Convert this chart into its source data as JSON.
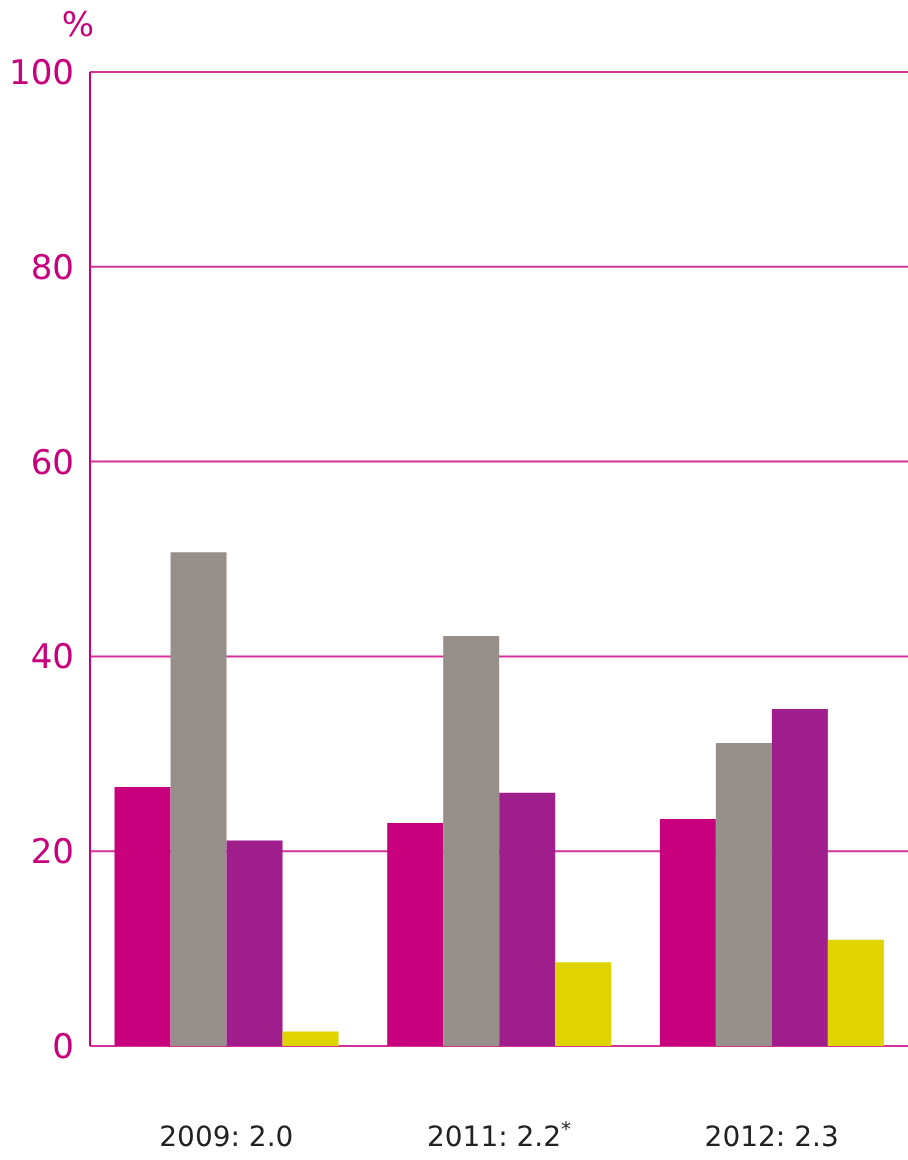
{
  "chart_data": {
    "type": "bar",
    "ylabel": "%",
    "categories": [
      "2009: 2.0",
      "2011: 2.2$^{*}$",
      "2012: 2.3"
    ],
    "series": [
      {
        "color": "#c8007d",
        "values": [
          26.6,
          22.9,
          23.3
        ]
      },
      {
        "color": "#968f8a",
        "values": [
          50.7,
          42.1,
          31.1
        ]
      },
      {
        "color": "#a01e8c",
        "values": [
          21.1,
          26.0,
          34.6
        ]
      },
      {
        "color": "#e0d400",
        "values": [
          1.5,
          8.6,
          10.9
        ]
      }
    ],
    "ylim": [
      0,
      100
    ],
    "yticks": [
      0,
      20,
      40,
      60,
      80,
      100
    ],
    "grid": "y",
    "legend": false
  }
}
